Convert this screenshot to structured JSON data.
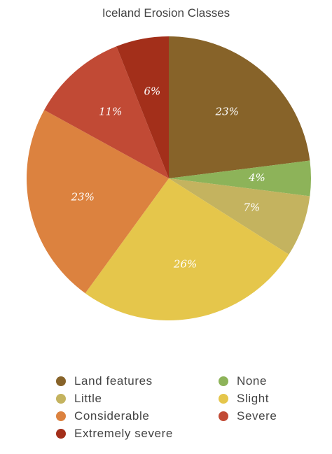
{
  "chart_data": {
    "type": "pie",
    "title": "Iceland Erosion Classes",
    "slices": [
      {
        "name": "Land features",
        "value": 23,
        "label": "23%",
        "color": "#876329"
      },
      {
        "name": "None",
        "value": 4,
        "label": "4%",
        "color": "#8db359"
      },
      {
        "name": "Little",
        "value": 7,
        "label": "7%",
        "color": "#c4b35f"
      },
      {
        "name": "Slight",
        "value": 26,
        "label": "26%",
        "color": "#e5c64b"
      },
      {
        "name": "Considerable",
        "value": 23,
        "label": "23%",
        "color": "#dc823f"
      },
      {
        "name": "Severe",
        "value": 11,
        "label": "11%",
        "color": "#c14a35"
      },
      {
        "name": "Extremely severe",
        "value": 6,
        "label": "6%",
        "color": "#a32f1a"
      }
    ],
    "start_angle_deg": 0,
    "direction": "clockwise",
    "legend_position": "bottom",
    "legend_order": [
      "Land features",
      "None",
      "Little",
      "Slight",
      "Considerable",
      "Severe",
      "Extremely severe"
    ]
  }
}
